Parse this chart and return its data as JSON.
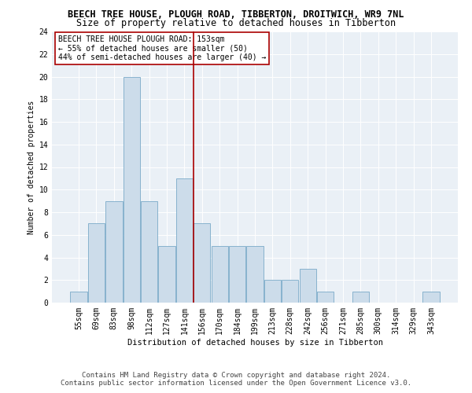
{
  "title1": "BEECH TREE HOUSE, PLOUGH ROAD, TIBBERTON, DROITWICH, WR9 7NL",
  "title2": "Size of property relative to detached houses in Tibberton",
  "xlabel": "Distribution of detached houses by size in Tibberton",
  "ylabel": "Number of detached properties",
  "categories": [
    "55sqm",
    "69sqm",
    "83sqm",
    "98sqm",
    "112sqm",
    "127sqm",
    "141sqm",
    "156sqm",
    "170sqm",
    "184sqm",
    "199sqm",
    "213sqm",
    "228sqm",
    "242sqm",
    "256sqm",
    "271sqm",
    "285sqm",
    "300sqm",
    "314sqm",
    "329sqm",
    "343sqm"
  ],
  "values": [
    1,
    7,
    9,
    20,
    9,
    5,
    11,
    7,
    5,
    5,
    5,
    2,
    2,
    3,
    1,
    0,
    1,
    0,
    0,
    0,
    1
  ],
  "bar_color": "#ccdcea",
  "bar_edge_color": "#7aaac8",
  "vline_color": "#aa0000",
  "annotation_text": "BEECH TREE HOUSE PLOUGH ROAD: 153sqm\n← 55% of detached houses are smaller (50)\n44% of semi-detached houses are larger (40) →",
  "annotation_box_color": "#ffffff",
  "annotation_box_edge_color": "#aa0000",
  "ylim": [
    0,
    24
  ],
  "yticks": [
    0,
    2,
    4,
    6,
    8,
    10,
    12,
    14,
    16,
    18,
    20,
    22,
    24
  ],
  "bg_color": "#eaf0f6",
  "footer1": "Contains HM Land Registry data © Crown copyright and database right 2024.",
  "footer2": "Contains public sector information licensed under the Open Government Licence v3.0.",
  "title1_fontsize": 8.5,
  "title2_fontsize": 8.5,
  "axis_label_fontsize": 7.5,
  "tick_fontsize": 7,
  "annotation_fontsize": 7,
  "footer_fontsize": 6.5,
  "ylabel_fontsize": 7
}
